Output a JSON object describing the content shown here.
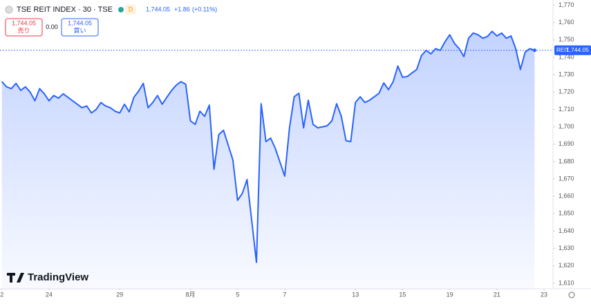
{
  "header": {
    "symbol": "TSE REIT INDEX · 30 · TSE",
    "badge": "D",
    "last": "1,744.05",
    "change": "+1.86",
    "change_pct": "(+0.11%)"
  },
  "sell": {
    "price": "1,744.05",
    "label": "売り"
  },
  "spread": "0.00",
  "buy": {
    "price": "1,744.05",
    "label": "買い"
  },
  "logo": "TradingView",
  "chart_data": {
    "type": "area",
    "color": "#2962ff",
    "values": [
      1726,
      1723,
      1722,
      1725,
      1721,
      1723,
      1720,
      1715,
      1722,
      1719,
      1715,
      1718,
      1716.5,
      1719,
      1717,
      1715,
      1713,
      1711,
      1712,
      1708,
      1710,
      1714,
      1712,
      1711,
      1709,
      1708,
      1713,
      1708.6,
      1717,
      1720.5,
      1725,
      1711,
      1714,
      1718,
      1713,
      1717,
      1721,
      1724,
      1726,
      1724.5,
      1703.4,
      1701.4,
      1709,
      1706,
      1712.5,
      1675.6,
      1695.5,
      1698,
      1689.5,
      1681,
      1657.7,
      1661.7,
      1669.6,
      1645.8,
      1622,
      1713.3,
      1691.5,
      1693.5,
      1687.5,
      1679.6,
      1671.6,
      1699.4,
      1717.3,
      1719.3,
      1699.4,
      1715.3,
      1701.4,
      1699.4,
      1700,
      1700.6,
      1703.4,
      1713.3,
      1706,
      1692,
      1691.5,
      1714,
      1717.3,
      1714,
      1715.3,
      1717.3,
      1719.3,
      1725.3,
      1721.4,
      1726,
      1735,
      1728.5,
      1729,
      1731,
      1733,
      1741,
      1744,
      1742,
      1745,
      1744,
      1749,
      1753,
      1748,
      1745,
      1740.4,
      1751,
      1754,
      1753,
      1751,
      1752,
      1755,
      1752.3,
      1754,
      1751,
      1752.3,
      1745,
      1733,
      1743,
      1745,
      1744.05
    ],
    "xlim": [
      -0.4,
      116.9
    ],
    "xticks": [
      {
        "value": 0,
        "label": "2"
      },
      {
        "value": 10,
        "label": "24"
      },
      {
        "value": 25,
        "label": "29"
      },
      {
        "value": 40,
        "label": "8月"
      },
      {
        "value": 50,
        "label": "5"
      },
      {
        "value": 60,
        "label": "7"
      },
      {
        "value": 75,
        "label": "13"
      },
      {
        "value": 85,
        "label": "15"
      },
      {
        "value": 95,
        "label": "19"
      },
      {
        "value": 105,
        "label": "21"
      },
      {
        "value": 115,
        "label": "23"
      }
    ],
    "ylim": [
      1606,
      1773
    ],
    "yticks": [
      {
        "value": 1610,
        "label": "1,610"
      },
      {
        "value": 1620,
        "label": "1,620"
      },
      {
        "value": 1630,
        "label": "1,630"
      },
      {
        "value": 1640,
        "label": "1,640"
      },
      {
        "value": 1650,
        "label": "1,650"
      },
      {
        "value": 1660,
        "label": "1,660"
      },
      {
        "value": 1670,
        "label": "1,670"
      },
      {
        "value": 1680,
        "label": "1,680"
      },
      {
        "value": 1690,
        "label": "1,690"
      },
      {
        "value": 1700,
        "label": "1,700"
      },
      {
        "value": 1710,
        "label": "1,710"
      },
      {
        "value": 1720,
        "label": "1,720"
      },
      {
        "value": 1730,
        "label": "1,730"
      },
      {
        "value": 1740,
        "label": "1,740"
      },
      {
        "value": 1750,
        "label": "1,750"
      },
      {
        "value": 1760,
        "label": "1,760"
      },
      {
        "value": 1770,
        "label": "1,770"
      }
    ],
    "grid": false,
    "price_line": {
      "name": "REIT",
      "value": 1744.05,
      "label": "1,744.05"
    }
  }
}
